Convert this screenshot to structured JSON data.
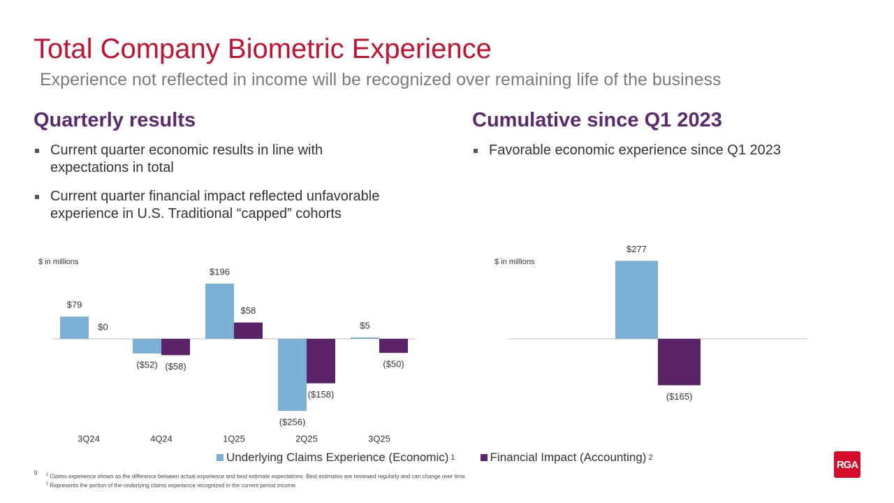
{
  "title": "Total Company Biometric Experience",
  "subtitle": "Experience not reflected in income will be recognized over remaining life of the business",
  "sections": [
    {
      "heading": "Quarterly results",
      "bullets": [
        "Current quarter economic results in line with expectations in total",
        "Current quarter financial impact reflected unfavorable experience in U.S. Traditional “capped” cohorts"
      ]
    },
    {
      "heading": "Cumulative since Q1 2023",
      "bullets": [
        "Favorable economic experience since Q1 2023"
      ]
    }
  ],
  "chart_data": [
    {
      "type": "bar",
      "unit_note": "$ in millions",
      "categories": [
        "3Q24",
        "4Q24",
        "1Q25",
        "2Q25",
        "3Q25"
      ],
      "series": [
        {
          "name": "Underlying Claims Experience (Economic)",
          "footnote_ref": "1",
          "color": "#7bafd4",
          "values": [
            79,
            -52,
            196,
            -256,
            5
          ],
          "value_labels": [
            "$79",
            "($52)",
            "$196",
            "($256)",
            "$5"
          ]
        },
        {
          "name": "Financial Impact (Accounting)",
          "footnote_ref": "2",
          "color": "#5b2369",
          "values": [
            0,
            -58,
            58,
            -158,
            -50
          ],
          "value_labels": [
            "$0",
            "($58)",
            "$58",
            "($158)",
            "($50)"
          ]
        }
      ]
    },
    {
      "type": "bar",
      "unit_note": "$ in millions",
      "categories": [
        null
      ],
      "series": [
        {
          "name": "Underlying Claims Experience (Economic)",
          "color": "#7bafd4",
          "values": [
            277
          ],
          "value_labels": [
            "$277"
          ]
        },
        {
          "name": "Financial Impact (Accounting)",
          "color": "#5b2369",
          "values": [
            -165
          ],
          "value_labels": [
            "($165)"
          ]
        }
      ]
    }
  ],
  "footnotes": [
    {
      "marker": "1",
      "text": "Claims experience shown as the difference between actual experience and best estimate expectations. Best estimates are reviewed regularly and can change over time."
    },
    {
      "marker": "2",
      "text": "Represents the portion of the underlying claims experience recognized in the current period income."
    }
  ],
  "page_number": "9",
  "logo": "RGA"
}
